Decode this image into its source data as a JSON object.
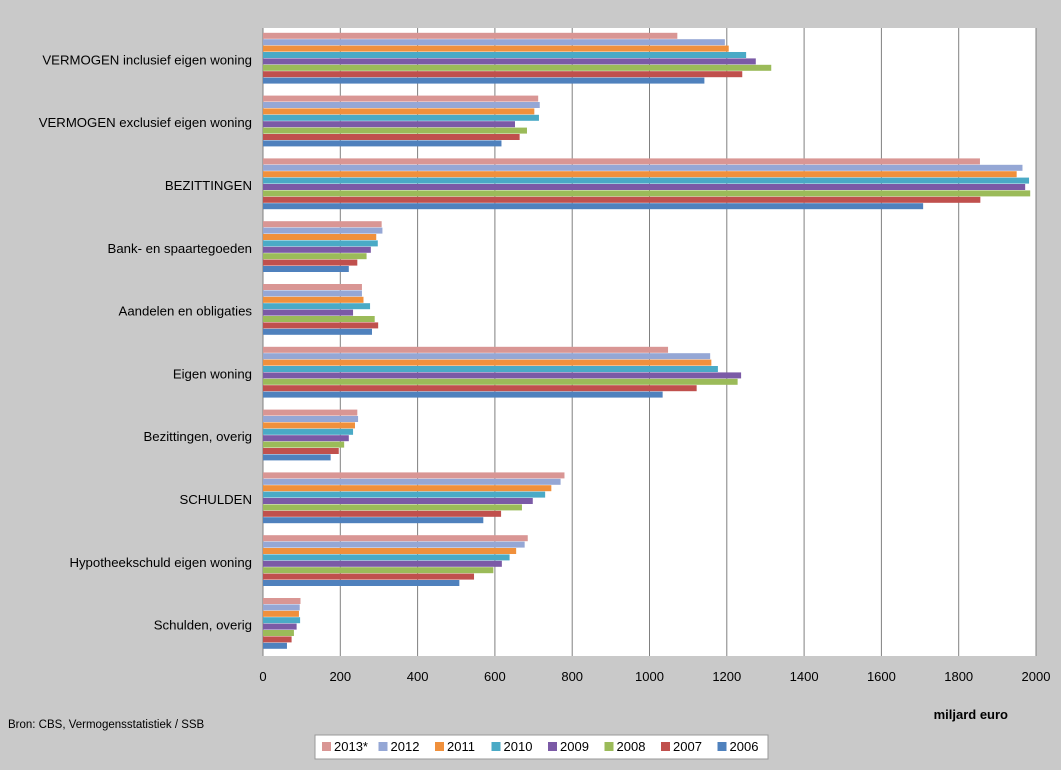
{
  "title": "",
  "source_note": "Bron: CBS, Vermogensstatistiek / SSB",
  "x_unit_label": "miljard euro",
  "colors": {
    "page_bg": "#c9c9c9",
    "plot_bg": "#ffffff",
    "grid": "#808080",
    "2013*": "#d99694",
    "2012": "#95a7d5",
    "2011": "#f0903c",
    "2010": "#4aaac6",
    "2009": "#7b5aa6",
    "2008": "#9bbb59",
    "2007": "#c0504d",
    "2006": "#4f81bd"
  },
  "chart_data": {
    "type": "bar",
    "orientation": "horizontal",
    "title": "",
    "xlabel": "miljard euro",
    "ylabel": "",
    "xlim": [
      0,
      2000
    ],
    "x_ticks": [
      0,
      200,
      400,
      600,
      800,
      1000,
      1200,
      1400,
      1600,
      1800,
      2000
    ],
    "grid": "vertical",
    "legend_position": "bottom",
    "categories": [
      "VERMOGEN inclusief eigen woning",
      "VERMOGEN exclusief eigen woning",
      "BEZITTINGEN",
      "Bank- en spaartegoeden",
      "Aandelen en obligaties",
      "Eigen woning",
      "Bezittingen, overig",
      "SCHULDEN",
      "Hypotheekschuld eigen woning",
      "Schulden, overig"
    ],
    "series": [
      {
        "name": "2013*",
        "values": [
          1072,
          712,
          1855,
          307,
          256,
          1048,
          244,
          780,
          685,
          97
        ]
      },
      {
        "name": "2012",
        "values": [
          1195,
          716,
          1965,
          309,
          256,
          1157,
          246,
          770,
          677,
          95
        ]
      },
      {
        "name": "2011",
        "values": [
          1205,
          702,
          1950,
          293,
          260,
          1160,
          238,
          746,
          655,
          93
        ]
      },
      {
        "name": "2010",
        "values": [
          1250,
          714,
          1982,
          297,
          277,
          1177,
          233,
          730,
          638,
          96
        ]
      },
      {
        "name": "2009",
        "values": [
          1275,
          652,
          1972,
          279,
          233,
          1237,
          222,
          698,
          618,
          87
        ]
      },
      {
        "name": "2008",
        "values": [
          1315,
          683,
          1985,
          268,
          289,
          1228,
          210,
          670,
          596,
          80
        ]
      },
      {
        "name": "2007",
        "values": [
          1240,
          664,
          1856,
          244,
          298,
          1122,
          196,
          616,
          546,
          74
        ]
      },
      {
        "name": "2006",
        "values": [
          1142,
          617,
          1708,
          222,
          282,
          1034,
          175,
          570,
          508,
          62
        ]
      }
    ],
    "legend_entries": [
      "2013*",
      "2012",
      "2011",
      "2010",
      "2009",
      "2008",
      "2007",
      "2006"
    ]
  }
}
